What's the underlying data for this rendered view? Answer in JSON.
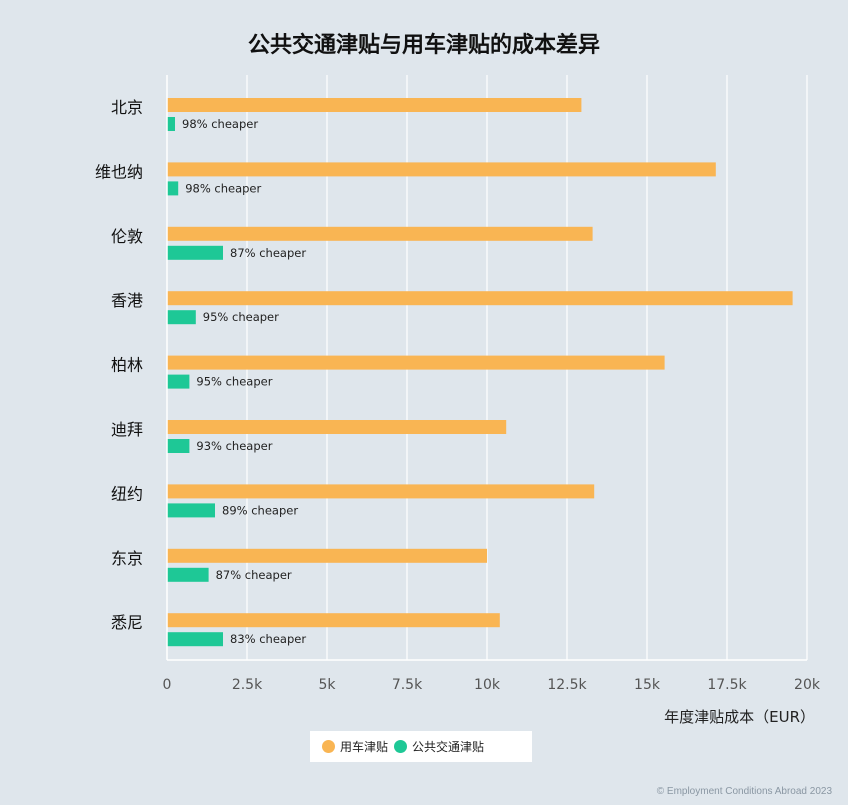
{
  "chart_data": {
    "type": "bar",
    "orientation": "horizontal",
    "title": "公共交通津贴与用车津贴的成本差异",
    "xlabel": "年度津贴成本（EUR）",
    "xlim": [
      0,
      20000
    ],
    "xticks": [
      0,
      2500,
      5000,
      7500,
      10000,
      12500,
      15000,
      17500,
      20000
    ],
    "xtick_labels": [
      "0",
      "2.5k",
      "5k",
      "7.5k",
      "10k",
      "12.5k",
      "15k",
      "17.5k",
      "20k"
    ],
    "grid": "vertical",
    "categories": [
      "北京",
      "维也纳",
      "伦敦",
      "香港",
      "柏林",
      "迪拜",
      "纽约",
      "东京",
      "悉尼"
    ],
    "series": [
      {
        "name": "用车津贴",
        "color": "#f9b553",
        "values": [
          12950,
          17150,
          13300,
          19550,
          15550,
          10600,
          13350,
          10000,
          10400
        ]
      },
      {
        "name": "公共交通津贴",
        "color": "#1ec896",
        "values": [
          250,
          350,
          1750,
          900,
          700,
          700,
          1500,
          1300,
          1750
        ]
      }
    ],
    "annotations": [
      "98% cheaper",
      "98% cheaper",
      "87% cheaper",
      "95% cheaper",
      "95% cheaper",
      "93% cheaper",
      "89% cheaper",
      "87% cheaper",
      "83% cheaper"
    ],
    "legend_position": "bottom-center"
  },
  "footer": "© Employment Conditions Abroad 2023"
}
